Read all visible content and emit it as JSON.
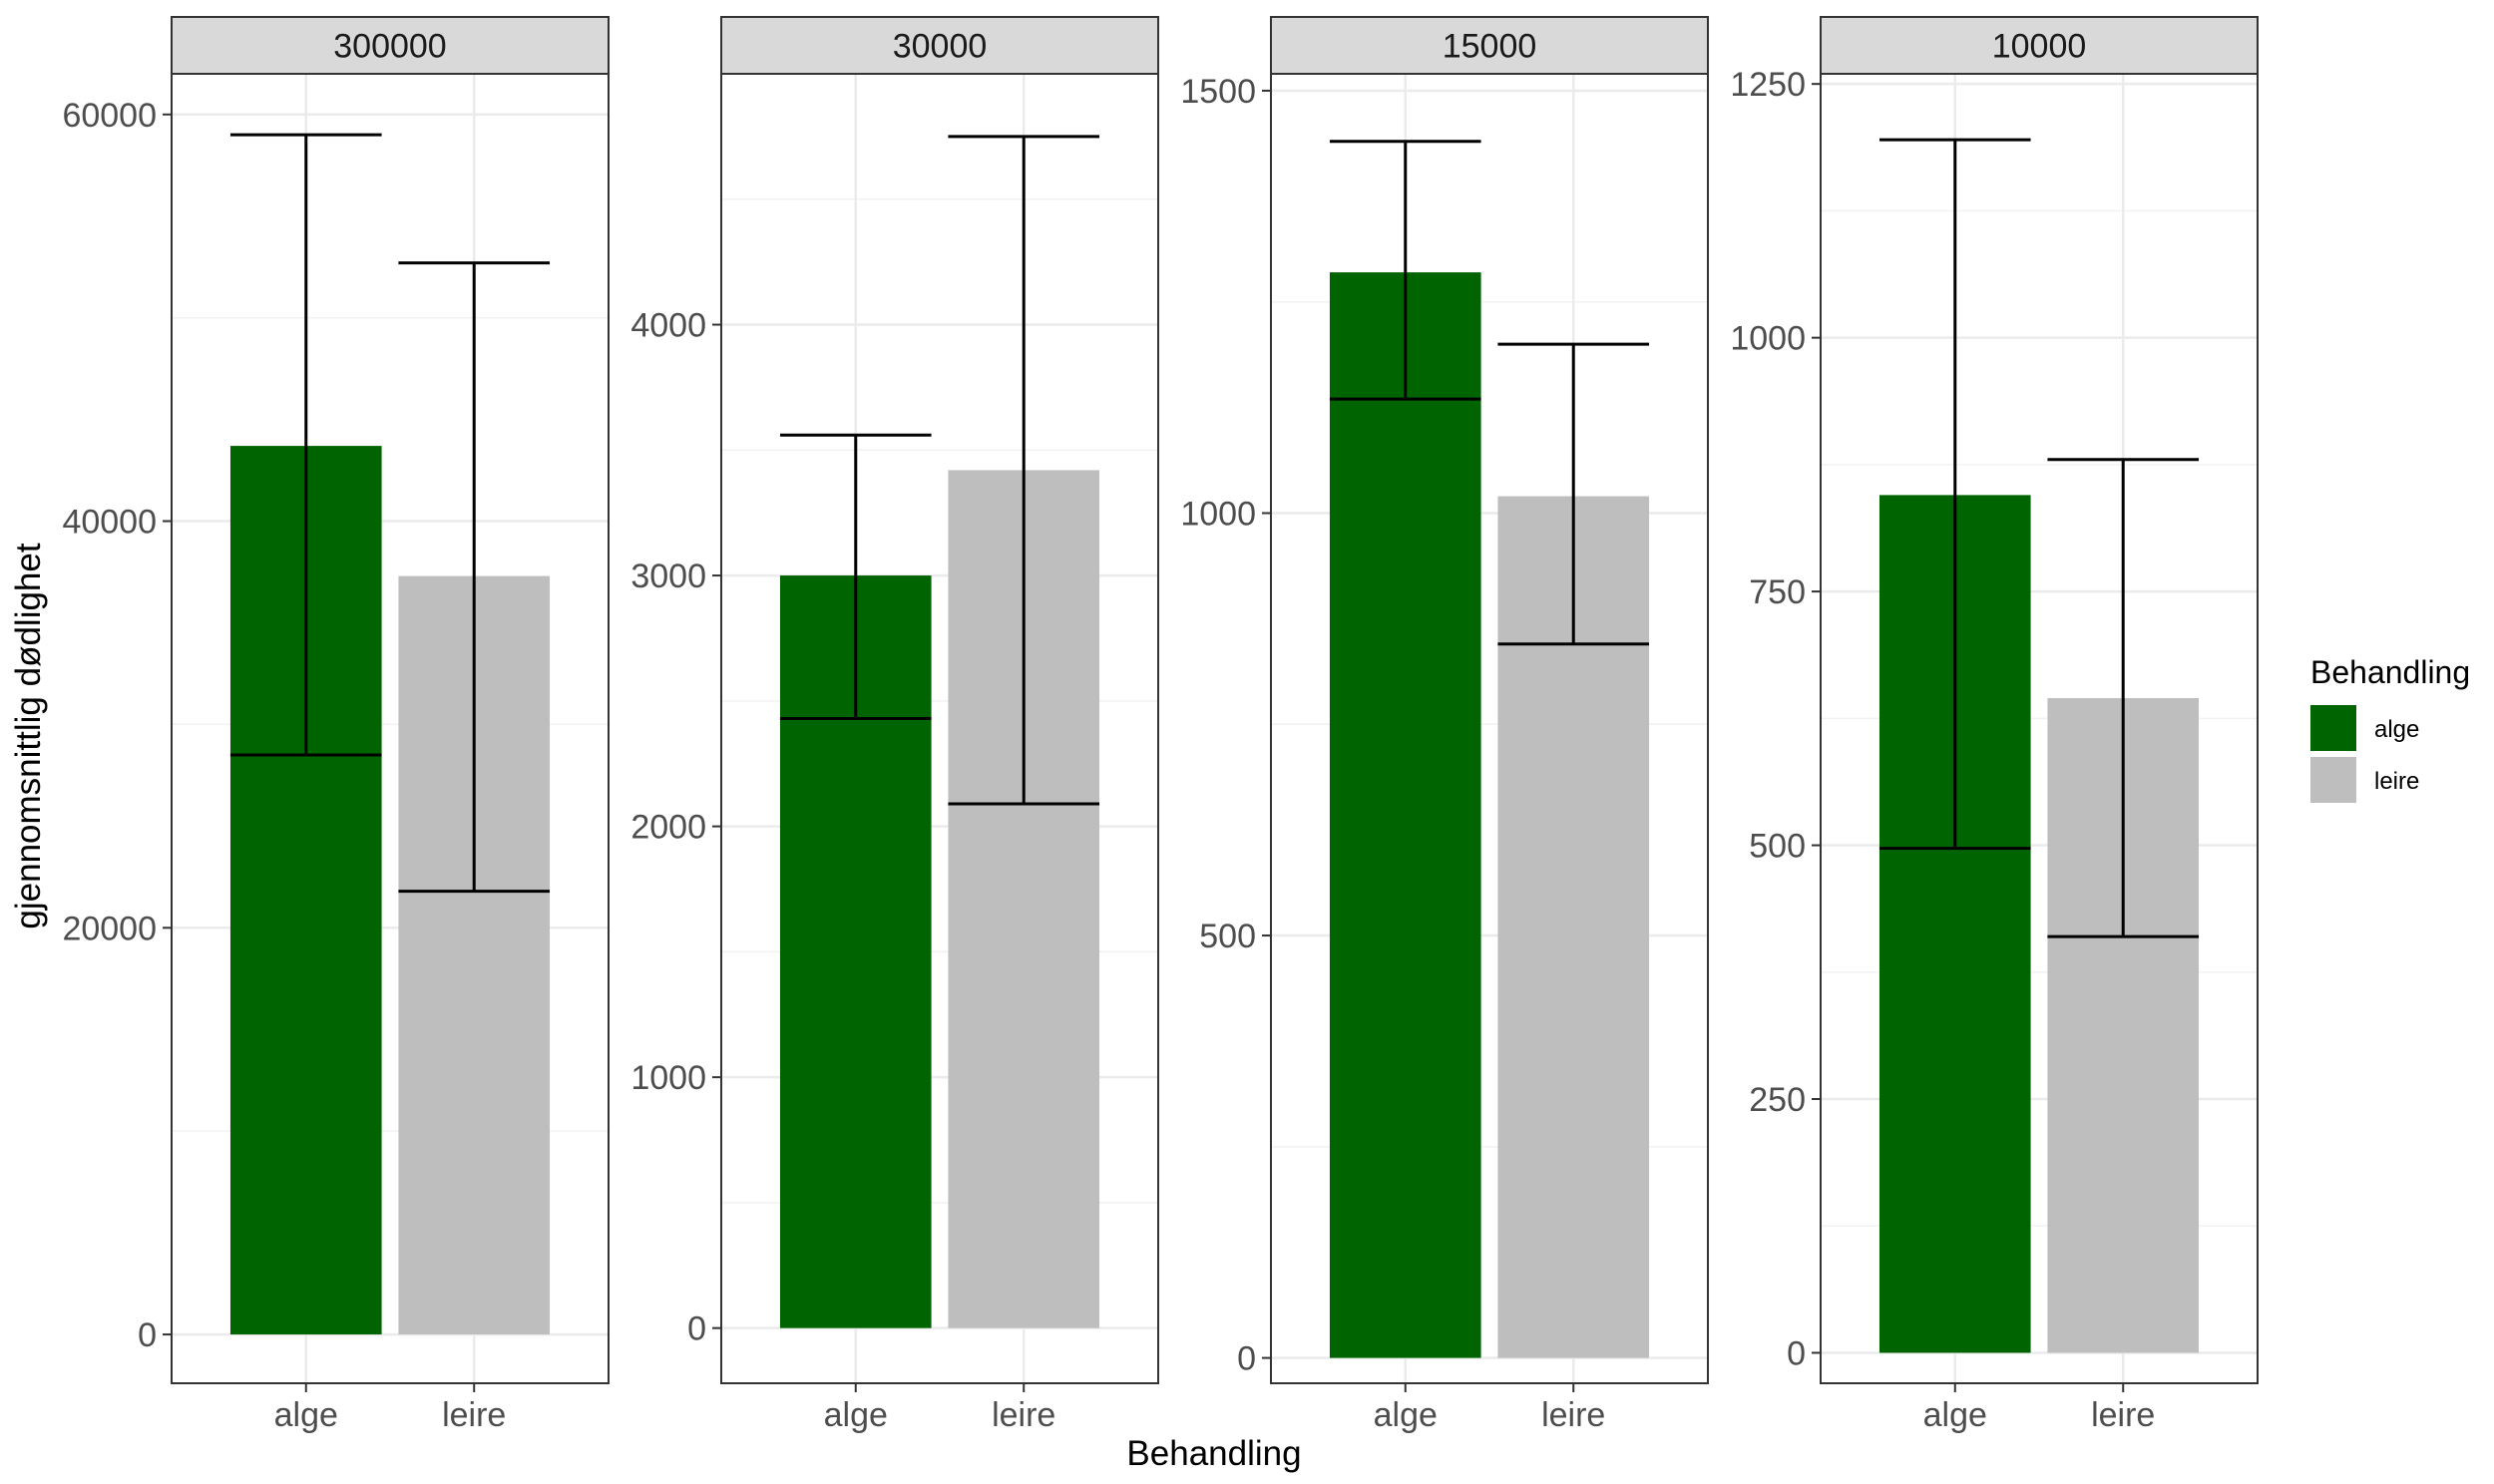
{
  "x_axis_title": "Behandling",
  "y_axis_title": "gjennomsnittlig dødlighet",
  "legend": {
    "title": "Behandling",
    "items": [
      {
        "label": "alge",
        "color": "#006400"
      },
      {
        "label": "leire",
        "color": "#bebebe"
      }
    ]
  },
  "chart_data": {
    "type": "bar",
    "xlabel": "Behandling",
    "ylabel": "gjennomsnittlig dødlighet",
    "categories": [
      "alge",
      "leire"
    ],
    "colors": [
      "#006400",
      "#bebebe"
    ],
    "grid": true,
    "legend_position": "right",
    "facets": [
      {
        "label": "300000",
        "ylim": [
          -2400,
          62000
        ],
        "yticks": [
          0,
          20000,
          40000,
          60000
        ],
        "values": [
          43700,
          37300
        ],
        "err_low": [
          28500,
          21800
        ],
        "err_high": [
          59000,
          52700
        ]
      },
      {
        "label": "30000",
        "ylim": [
          -220,
          5000
        ],
        "yticks": [
          0,
          1000,
          2000,
          3000,
          4000
        ],
        "values": [
          3000,
          3420
        ],
        "err_low": [
          2430,
          2090
        ],
        "err_high": [
          3560,
          4750
        ]
      },
      {
        "label": "15000",
        "ylim": [
          -30,
          1520
        ],
        "yticks": [
          0,
          500,
          1000,
          1500
        ],
        "values": [
          1285,
          1020
        ],
        "err_low": [
          1135,
          845
        ],
        "err_high": [
          1440,
          1200
        ]
      },
      {
        "label": "10000",
        "ylim": [
          -30,
          1260
        ],
        "yticks": [
          0,
          250,
          500,
          750,
          1000,
          1250
        ],
        "values": [
          845,
          645
        ],
        "err_low": [
          497,
          410
        ],
        "err_high": [
          1195,
          880
        ]
      }
    ]
  }
}
